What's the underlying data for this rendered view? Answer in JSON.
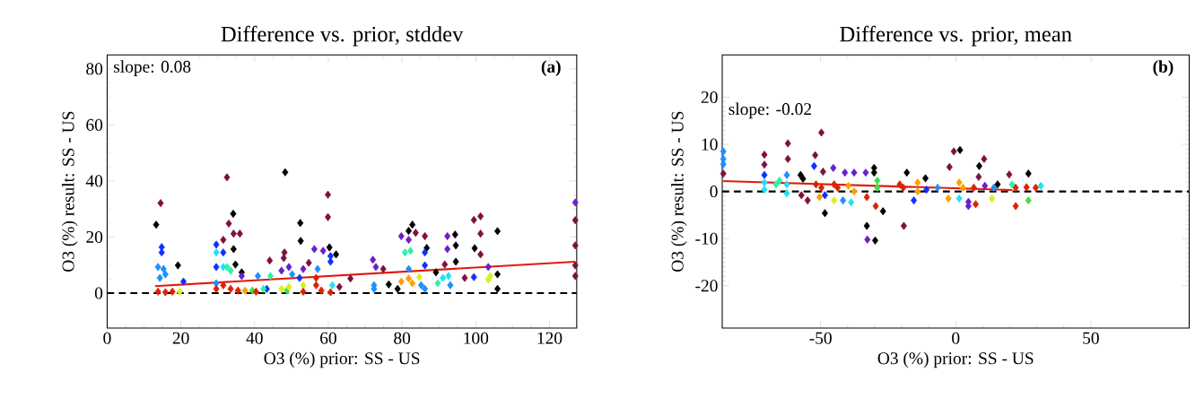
{
  "chart_data": [
    {
      "type": "scatter",
      "title": "Difference vs. prior, stddev",
      "xlabel": "O3 (%) prior: SS - US",
      "ylabel": "O3 (%) result: SS - US",
      "annotations": [
        "slope: 0.08",
        "(a)"
      ],
      "xlim": [
        0,
        127.4
      ],
      "ylim": [
        -12.5,
        85
      ],
      "xticks": [
        0,
        20,
        40,
        60,
        80,
        100,
        120
      ],
      "yticks": [
        0,
        20,
        40,
        60,
        80
      ],
      "marker": "diamond",
      "grid": false,
      "ref_lines": [
        {
          "axis": "y",
          "value": 0,
          "color": "#000000",
          "line_style": "dashed"
        }
      ],
      "series": [
        {
          "color": "#000000",
          "x": [
            13.3,
            19.2,
            34.2,
            34.3,
            34.8,
            36.5,
            48.3,
            52.4,
            52.5,
            60.3,
            62.1,
            76.4,
            78.8,
            82.8,
            81.8,
            86.7,
            94.4,
            94.6,
            94.6,
            99.7,
            105.9,
            105.9,
            105.9,
            89.2
          ],
          "values": [
            24.4,
            9.9,
            28.3,
            15.7,
            10.2,
            7.4,
            43.1,
            25,
            18.6,
            16.3,
            13.8,
            3.1,
            1.5,
            24.4,
            22.2,
            16.1,
            20.9,
            17,
            11.2,
            16,
            22.1,
            6.7,
            1.5,
            7.4
          ]
        },
        {
          "color": "#7f1040",
          "x": [
            14.5,
            32.5,
            33,
            34.3,
            36,
            31.5,
            44.1,
            48.1,
            47.9,
            59.9,
            59.9,
            54.7,
            66,
            74.9,
            83.7,
            86.2,
            91.6,
            99.5,
            101.3,
            101.3,
            101.3,
            97,
            127,
            127,
            127,
            127,
            63
          ],
          "values": [
            32.1,
            41.3,
            24.8,
            21.2,
            21.2,
            19,
            11.6,
            14.5,
            12.5,
            35.1,
            27.1,
            10.8,
            5.2,
            8.6,
            21.5,
            20.3,
            10.2,
            26.1,
            27.4,
            21.2,
            13.8,
            5.4,
            26,
            17,
            9.9,
            6.1,
            2.2
          ]
        },
        {
          "color": "#6a1fc8",
          "x": [
            47.3,
            49.3,
            53.2,
            56.2,
            58.6,
            72.1,
            72.9,
            79.8,
            81.8,
            92.3,
            92.3,
            103.4,
            127,
            36.5
          ],
          "values": [
            8,
            9.3,
            8.6,
            15.7,
            15.1,
            11.9,
            9.3,
            20.3,
            19,
            20.3,
            15.7,
            9.3,
            32.3,
            6.1
          ]
        },
        {
          "color": "#1030ff",
          "x": [
            14.8,
            14.8,
            29.6,
            31.5,
            29.6,
            60.6,
            60.6,
            86.2,
            86.2,
            99.5,
            20.7,
            43.3,
            52.2
          ],
          "values": [
            16.4,
            14.5,
            17.3,
            14.5,
            9.3,
            11.2,
            13.2,
            14.5,
            9.9,
            5.7,
            4.1,
            1.5,
            5.4
          ]
        },
        {
          "color": "#1e8fff",
          "x": [
            13.8,
            15.3,
            14.3,
            15.8,
            40.9,
            50.2,
            57.1,
            72.4,
            72.4,
            81.8,
            86.2,
            85.2,
            93.1,
            29.6
          ],
          "values": [
            9.3,
            8.6,
            5.4,
            6.7,
            6.1,
            6.7,
            8.6,
            1.5,
            2.8,
            8.6,
            1.5,
            2.8,
            2.8,
            3.5
          ]
        },
        {
          "color": "#20e0f8",
          "x": [
            29.6,
            92.6,
            91.1,
            61.1,
            31.5
          ],
          "values": [
            14.5,
            6.1,
            5.4,
            2.8,
            9.3
          ]
        },
        {
          "color": "#30f0a8",
          "x": [
            32.5,
            33.5,
            44.3,
            80.8,
            82.3,
            89.7,
            42.4
          ],
          "values": [
            9.3,
            8,
            6.1,
            14.5,
            15.1,
            3.5,
            1.5
          ]
        },
        {
          "color": "#40e040",
          "x": [
            39.4,
            48.8
          ],
          "values": [
            0.9,
            0.9
          ]
        },
        {
          "color": "#d8f020",
          "x": [
            19.7,
            47.3,
            49.3,
            53.2,
            84.7,
            103.4,
            103.9
          ],
          "values": [
            0.5,
            1.5,
            2.2,
            2.8,
            5.7,
            4.8,
            6.1
          ]
        },
        {
          "color": "#ffa000",
          "x": [
            79.8,
            81.8,
            82.8,
            37.4
          ],
          "values": [
            4.1,
            5.2,
            3.5,
            0.9
          ]
        },
        {
          "color": "#dd2200",
          "x": [
            13.8,
            15.8,
            17.7,
            29.6,
            31.5,
            33.5,
            35.5,
            40.4,
            53.2,
            56.7,
            56.7,
            58.1,
            60.6
          ],
          "values": [
            0.5,
            0.3,
            0.5,
            1.5,
            2.8,
            1.5,
            0.9,
            0.5,
            0.5,
            5.4,
            2.8,
            0.9,
            0.3
          ]
        },
        {
          "type": "line",
          "marker": "none",
          "color": "#e01a0a",
          "x": [
            13,
            127
          ],
          "values": [
            2.5,
            11.2
          ]
        }
      ]
    },
    {
      "type": "scatter",
      "title": "Difference vs. prior, mean",
      "xlabel": "O3 (%) prior: SS - US",
      "ylabel": "O3 (%) result: SS - US",
      "annotations": [
        "slope: -0.02",
        "(b)"
      ],
      "xlim": [
        -86.4,
        86.4
      ],
      "ylim": [
        -29,
        29
      ],
      "xticks": [
        -50,
        0,
        50
      ],
      "yticks": [
        -20,
        -10,
        0,
        10,
        20
      ],
      "marker": "diamond",
      "grid": false,
      "ref_lines": [
        {
          "axis": "y",
          "value": 0,
          "color": "#000000",
          "line_style": "dashed"
        }
      ],
      "series": [
        {
          "color": "#000000",
          "x": [
            -57.4,
            -56.5,
            -48.4,
            -30.2,
            -30.2,
            -32.9,
            -29.8,
            -26.9,
            -18.1,
            -11.2,
            1.6,
            8.7,
            15.5,
            26.9
          ],
          "values": [
            3.5,
            2.7,
            -4.6,
            5,
            4,
            -7.3,
            -10.4,
            -4.2,
            4,
            2.8,
            8.8,
            5.4,
            1.5,
            3.8
          ]
        },
        {
          "color": "#7f1040",
          "x": [
            -70.8,
            -70.8,
            -62.1,
            -62.1,
            -49.7,
            -52,
            -57.1,
            -54.8,
            -49.1,
            -19.2,
            -2.3,
            -0.7,
            10.5,
            8.5,
            19.8,
            -86
          ],
          "values": [
            7.8,
            5.7,
            10.2,
            6.9,
            12.5,
            7.7,
            -0.8,
            -1.9,
            4.2,
            -7.3,
            5.2,
            8.5,
            6.9,
            3.1,
            3.6,
            3.8
          ]
        },
        {
          "color": "#6a1fc8",
          "x": [
            -45.3,
            -41,
            -37.6,
            -33.3,
            -32.7,
            4.7,
            4.7,
            10.8
          ],
          "values": [
            5,
            4,
            4,
            4,
            -10.2,
            -2.2,
            -3.1,
            1.2
          ]
        },
        {
          "color": "#1030ff",
          "x": [
            -52.4,
            -70.8,
            -15.5,
            -48.4,
            -10.8
          ],
          "values": [
            5.4,
            3.5,
            -1.9,
            -0.8,
            0.4
          ]
        },
        {
          "color": "#1e8fff",
          "x": [
            -86,
            -86,
            -86,
            -62.5,
            -41.7,
            -6.7,
            14.1
          ],
          "values": [
            8.5,
            6.9,
            5.8,
            3.5,
            -1.9,
            0.8,
            0.8
          ]
        },
        {
          "color": "#20e0f8",
          "x": [
            -70.8,
            -70.8,
            -62.5,
            -62.5,
            -38.7,
            1.3,
            31.5
          ],
          "values": [
            1.9,
            0.4,
            -0.4,
            1.5,
            -2.3,
            -1.5,
            1.2
          ]
        },
        {
          "color": "#30f0a8",
          "x": [
            -65.2,
            -66.5,
            20.8
          ],
          "values": [
            2.3,
            1.5,
            1.5
          ]
        },
        {
          "color": "#40e040",
          "x": [
            -29,
            -29,
            26.9
          ],
          "values": [
            2.3,
            0.8,
            -1.9
          ]
        },
        {
          "color": "#d8f020",
          "x": [
            -45,
            13.4
          ],
          "values": [
            -1.9,
            -1.5
          ]
        },
        {
          "color": "#ffa000",
          "x": [
            -50.4,
            -39.7,
            -37.6,
            -14.1,
            -14.1,
            -2.7,
            1.3,
            2.7
          ],
          "values": [
            -1.2,
            1.2,
            0,
            1.9,
            0,
            -1.5,
            1.9,
            0.8
          ]
        },
        {
          "color": "#dd2200",
          "x": [
            -51.7,
            -49.7,
            -45,
            -43.7,
            -32.9,
            -29.6,
            -20.7,
            -19.4,
            6.7,
            7.4,
            22.2,
            22.2,
            26.2,
            29.6
          ],
          "values": [
            1.5,
            0.8,
            1.5,
            0.8,
            -1.2,
            -3.1,
            1.5,
            0.8,
            0.8,
            -2.7,
            -3.1,
            0.8,
            0.9,
            0.8
          ]
        },
        {
          "type": "line",
          "marker": "none",
          "color": "#e01a0a",
          "x": [
            -86,
            21
          ],
          "values": [
            2.2,
            0.3
          ]
        }
      ]
    }
  ]
}
